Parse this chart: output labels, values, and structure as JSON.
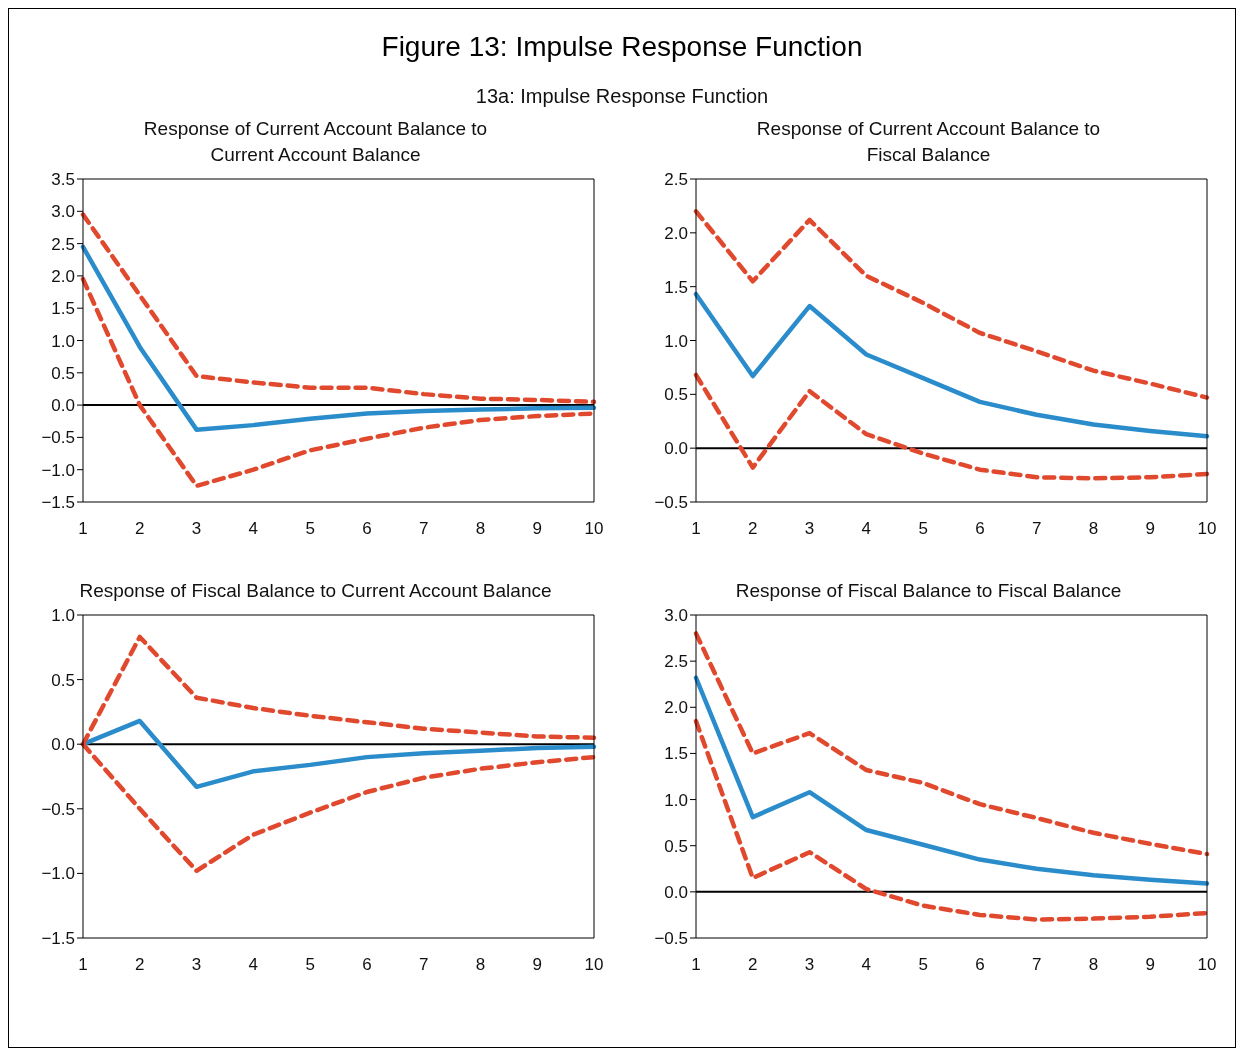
{
  "chart_data": [
    {
      "type": "line",
      "title": "Response of Current Account Balance to Current Account Balance",
      "annotations": [
        "Figure 13: Impulse Response Function",
        "13a: Impulse Response Function"
      ],
      "categories": [
        "1",
        "2",
        "3",
        "4",
        "5",
        "6",
        "7",
        "8",
        "9",
        "10"
      ],
      "ylim": [
        -1.5,
        3.5
      ],
      "yticks": [
        {
          "value": -1.5,
          "label": "−1.5"
        },
        {
          "value": -1,
          "label": "−1.0"
        },
        {
          "value": -0.5,
          "label": "−0.5"
        },
        {
          "value": 0,
          "label": "0.0"
        },
        {
          "value": 0.5,
          "label": "0.5"
        },
        {
          "value": 1,
          "label": "1.0"
        },
        {
          "value": 1.5,
          "label": "1.5"
        },
        {
          "value": 2,
          "label": "2.0"
        },
        {
          "value": 2.5,
          "label": "2.5"
        },
        {
          "value": 3,
          "label": "3.0"
        },
        {
          "value": 3.5,
          "label": "3.5"
        }
      ],
      "grid": false,
      "legend": false,
      "marker": "none",
      "ref_lines": [
        {
          "axis": "y",
          "value": 0,
          "color": "#000000"
        }
      ],
      "series": [
        {
          "color": "#2a8ccb",
          "line_style": "solid",
          "values": [
            2.45,
            0.9,
            -0.38,
            -0.31,
            -0.21,
            -0.13,
            -0.09,
            -0.07,
            -0.05,
            -0.04
          ]
        },
        {
          "color": "#e0492e",
          "line_style": "dashed",
          "values": [
            2.95,
            1.7,
            0.45,
            0.35,
            0.27,
            0.27,
            0.17,
            0.1,
            0.08,
            0.05
          ]
        },
        {
          "color": "#e0492e",
          "line_style": "dashed",
          "values": [
            1.95,
            0.0,
            -1.25,
            -1.0,
            -0.7,
            -0.52,
            -0.35,
            -0.23,
            -0.17,
            -0.13
          ]
        }
      ]
    },
    {
      "type": "line",
      "title": "Response of Current Account Balance to Fiscal Balance",
      "categories": [
        "1",
        "2",
        "3",
        "4",
        "5",
        "6",
        "7",
        "8",
        "9",
        "10"
      ],
      "ylim": [
        -0.5,
        2.5
      ],
      "yticks": [
        {
          "value": -0.5,
          "label": "−0.5"
        },
        {
          "value": 0,
          "label": "0.0"
        },
        {
          "value": 0.5,
          "label": "0.5"
        },
        {
          "value": 1,
          "label": "1.0"
        },
        {
          "value": 1.5,
          "label": "1.5"
        },
        {
          "value": 2,
          "label": "2.0"
        },
        {
          "value": 2.5,
          "label": "2.5"
        }
      ],
      "grid": false,
      "legend": false,
      "marker": "none",
      "ref_lines": [
        {
          "axis": "y",
          "value": 0,
          "color": "#000000"
        }
      ],
      "series": [
        {
          "color": "#2a8ccb",
          "line_style": "solid",
          "values": [
            1.43,
            0.67,
            1.32,
            0.87,
            0.65,
            0.43,
            0.31,
            0.22,
            0.16,
            0.11
          ]
        },
        {
          "color": "#e0492e",
          "line_style": "dashed",
          "values": [
            2.2,
            1.55,
            2.12,
            1.6,
            1.35,
            1.07,
            0.9,
            0.72,
            0.6,
            0.47
          ]
        },
        {
          "color": "#e0492e",
          "line_style": "dashed",
          "values": [
            0.68,
            -0.18,
            0.53,
            0.13,
            -0.05,
            -0.2,
            -0.27,
            -0.28,
            -0.27,
            -0.24
          ]
        }
      ]
    },
    {
      "type": "line",
      "title": "Response of Fiscal Balance to Current Account Balance",
      "categories": [
        "1",
        "2",
        "3",
        "4",
        "5",
        "6",
        "7",
        "8",
        "9",
        "10"
      ],
      "ylim": [
        -1.5,
        1.0
      ],
      "yticks": [
        {
          "value": -1.5,
          "label": "−1.5"
        },
        {
          "value": -1,
          "label": "−1.0"
        },
        {
          "value": -0.5,
          "label": "−0.5"
        },
        {
          "value": 0,
          "label": "0.0"
        },
        {
          "value": 0.5,
          "label": "0.5"
        },
        {
          "value": 1,
          "label": "1.0"
        }
      ],
      "grid": false,
      "legend": false,
      "marker": "none",
      "ref_lines": [
        {
          "axis": "y",
          "value": 0,
          "color": "#000000"
        }
      ],
      "series": [
        {
          "color": "#2a8ccb",
          "line_style": "solid",
          "values": [
            0,
            0.18,
            -0.33,
            -0.21,
            -0.16,
            -0.1,
            -0.07,
            -0.05,
            -0.03,
            -0.02
          ]
        },
        {
          "color": "#e0492e",
          "line_style": "dashed",
          "values": [
            0,
            0.83,
            0.36,
            0.28,
            0.22,
            0.17,
            0.12,
            0.09,
            0.06,
            0.05
          ]
        },
        {
          "color": "#e0492e",
          "line_style": "dashed",
          "values": [
            0,
            -0.5,
            -0.98,
            -0.7,
            -0.53,
            -0.37,
            -0.26,
            -0.19,
            -0.14,
            -0.1
          ]
        }
      ]
    },
    {
      "type": "line",
      "title": "Response of Fiscal Balance to Fiscal Balance",
      "categories": [
        "1",
        "2",
        "3",
        "4",
        "5",
        "6",
        "7",
        "8",
        "9",
        "10"
      ],
      "ylim": [
        -0.5,
        3.0
      ],
      "yticks": [
        {
          "value": -0.5,
          "label": "−0.5"
        },
        {
          "value": 0,
          "label": "0.0"
        },
        {
          "value": 0.5,
          "label": "0.5"
        },
        {
          "value": 1,
          "label": "1.0"
        },
        {
          "value": 1.5,
          "label": "1.5"
        },
        {
          "value": 2,
          "label": "2.0"
        },
        {
          "value": 2.5,
          "label": "2.5"
        },
        {
          "value": 3,
          "label": "3.0"
        }
      ],
      "grid": false,
      "legend": false,
      "marker": "none",
      "ref_lines": [
        {
          "axis": "y",
          "value": 0,
          "color": "#000000"
        }
      ],
      "series": [
        {
          "color": "#2a8ccb",
          "line_style": "solid",
          "values": [
            2.32,
            0.81,
            1.08,
            0.67,
            0.51,
            0.35,
            0.25,
            0.18,
            0.13,
            0.09
          ]
        },
        {
          "color": "#e0492e",
          "line_style": "dashed",
          "values": [
            2.8,
            1.5,
            1.72,
            1.32,
            1.18,
            0.95,
            0.8,
            0.64,
            0.52,
            0.41
          ]
        },
        {
          "color": "#e0492e",
          "line_style": "dashed",
          "values": [
            1.85,
            0.15,
            0.43,
            0.03,
            -0.15,
            -0.25,
            -0.3,
            -0.29,
            -0.27,
            -0.23
          ]
        }
      ]
    }
  ]
}
